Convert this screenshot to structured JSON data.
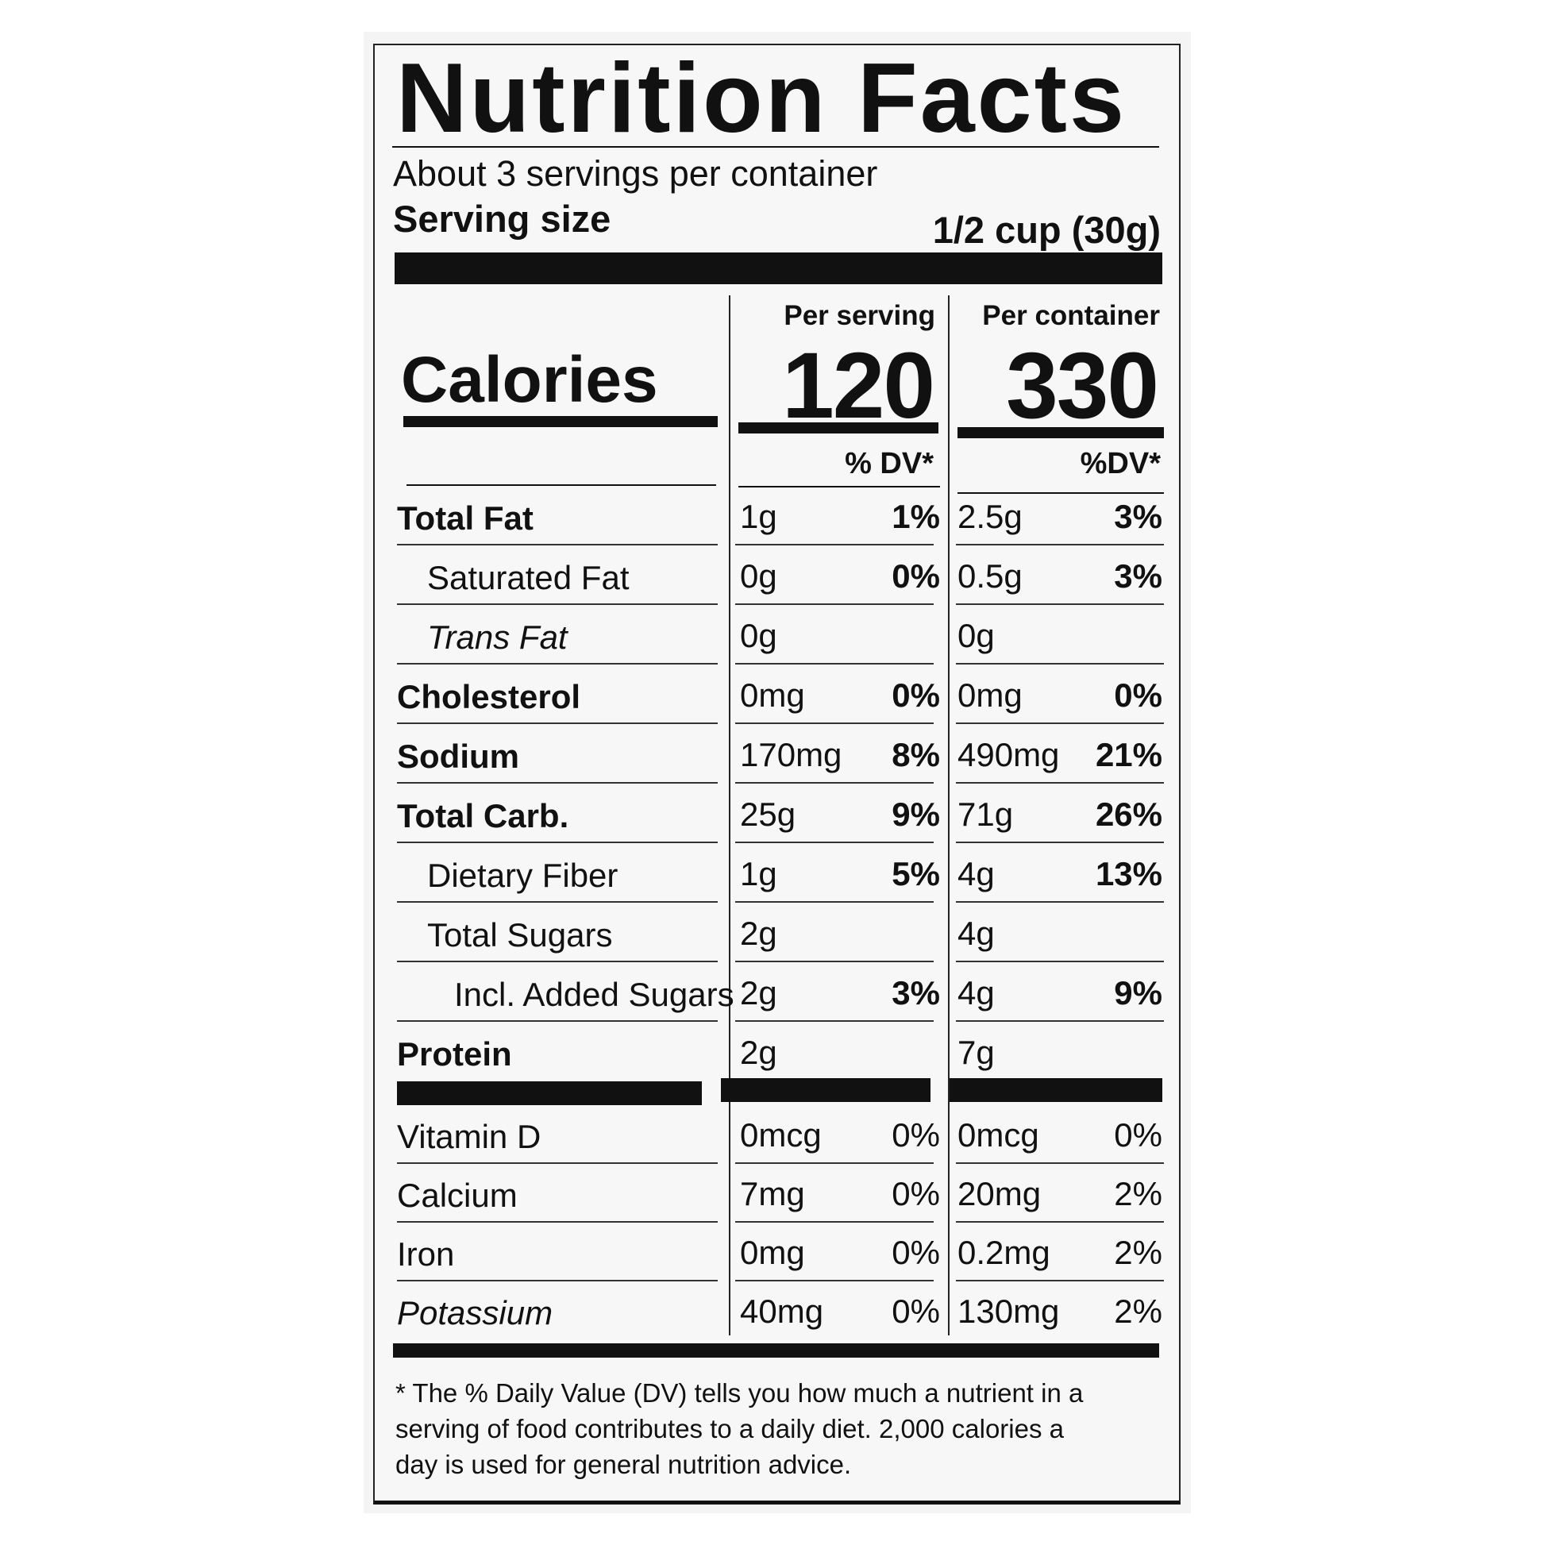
{
  "title": "Nutrition Facts",
  "servings_per_container": "About 3 servings per container",
  "serving_size": {
    "label": "Serving size",
    "value": "1/2 cup (30g)"
  },
  "columns": {
    "per_serving": "Per serving",
    "per_container": "Per container"
  },
  "calories": {
    "label": "Calories",
    "per_serving": "120",
    "per_container": "330"
  },
  "dv_headers": {
    "per_serving": "% DV*",
    "per_container": "%DV*"
  },
  "nutrients": [
    {
      "name": "Total Fat",
      "style": "bold",
      "s_amt": "1g",
      "s_dv": "1%",
      "c_amt": "2.5g",
      "c_dv": "3%"
    },
    {
      "name": "Saturated Fat",
      "style": "indent",
      "s_amt": "0g",
      "s_dv": "0%",
      "c_amt": "0.5g",
      "c_dv": "3%"
    },
    {
      "name": "Trans Fat",
      "style": "indent italic",
      "s_amt": "0g",
      "s_dv": "",
      "c_amt": "0g",
      "c_dv": ""
    },
    {
      "name": "Cholesterol",
      "style": "bold",
      "s_amt": "0mg",
      "s_dv": "0%",
      "c_amt": "0mg",
      "c_dv": "0%"
    },
    {
      "name": "Sodium",
      "style": "bold",
      "s_amt": "170mg",
      "s_dv": "8%",
      "c_amt": "490mg",
      "c_dv": "21%"
    },
    {
      "name": "Total Carb.",
      "style": "bold",
      "s_amt": "25g",
      "s_dv": "9%",
      "c_amt": "71g",
      "c_dv": "26%"
    },
    {
      "name": "Dietary Fiber",
      "style": "indent",
      "s_amt": "1g",
      "s_dv": "5%",
      "c_amt": "4g",
      "c_dv": "13%"
    },
    {
      "name": "Total Sugars",
      "style": "indent",
      "s_amt": "2g",
      "s_dv": "",
      "c_amt": "4g",
      "c_dv": ""
    },
    {
      "name": "Incl. Added Sugars",
      "style": "indent2",
      "s_amt": "2g",
      "s_dv": "3%",
      "c_amt": "4g",
      "c_dv": "9%"
    },
    {
      "name": "Protein",
      "style": "bold",
      "s_amt": "2g",
      "s_dv": "",
      "c_amt": "7g",
      "c_dv": ""
    }
  ],
  "vitamins": [
    {
      "name": "Vitamin D",
      "s_amt": "0mcg",
      "s_dv": "0%",
      "c_amt": "0mcg",
      "c_dv": "0%"
    },
    {
      "name": "Calcium",
      "s_amt": "7mg",
      "s_dv": "0%",
      "c_amt": "20mg",
      "c_dv": "2%"
    },
    {
      "name": "Iron",
      "s_amt": "0mg",
      "s_dv": "0%",
      "c_amt": "0.2mg",
      "c_dv": "2%"
    },
    {
      "name": "Potassium",
      "style": "italic",
      "s_amt": "40mg",
      "s_dv": "0%",
      "c_amt": "130mg",
      "c_dv": "2%"
    }
  ],
  "footnote": "* The % Daily Value (DV) tells you how much a nutrient in a serving of food contributes to a daily diet. 2,000 calories a day is used for general nutrition advice."
}
